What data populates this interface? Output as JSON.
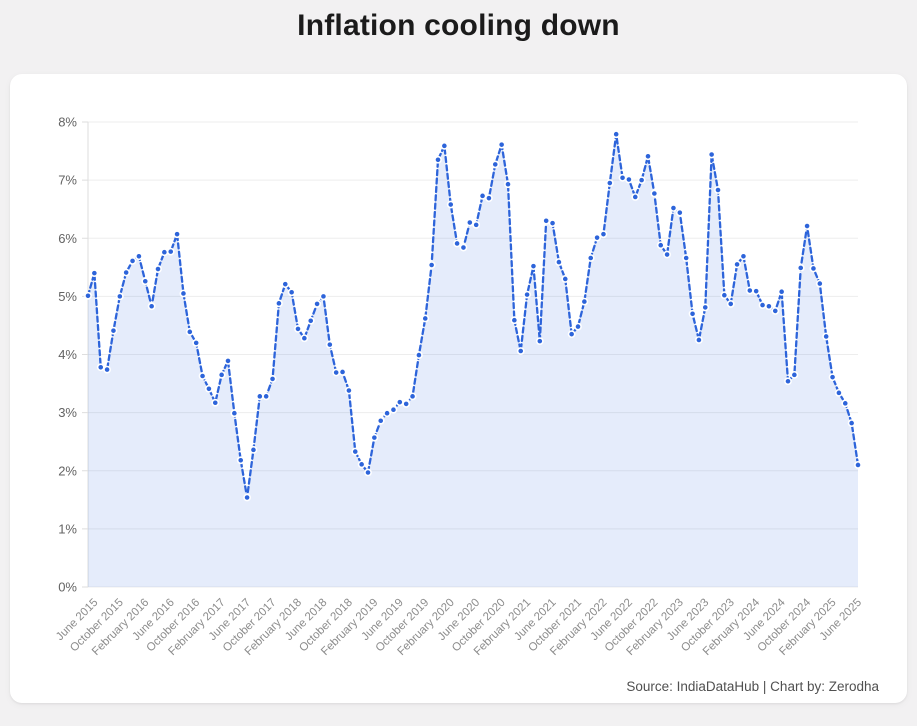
{
  "page": {
    "title": "Inflation cooling down",
    "source_note": "Source: IndiaDataHub | Chart by: Zerodha"
  },
  "chart_data": {
    "type": "line",
    "title": "Inflation cooling down",
    "line_style": "dashed",
    "marker": "dot",
    "legend": "none",
    "grid": "horizontal",
    "ylim": [
      0,
      8
    ],
    "y_tick_labels": [
      "0%",
      "1%",
      "2%",
      "3%",
      "4%",
      "5%",
      "6%",
      "7%",
      "8%"
    ],
    "x_first_tick_index": 1,
    "x_tick_every": 4,
    "x_tick_labels": [
      "June 2015",
      "October 2015",
      "February 2016",
      "June 2016",
      "October 2016",
      "February 2017",
      "June 2017",
      "October 2017",
      "February 2018",
      "June 2018",
      "October 2018",
      "February 2019",
      "June 2019",
      "October 2019",
      "February 2020",
      "June 2020",
      "October 2020",
      "February 2021",
      "June 2021",
      "October 2021",
      "February 2022",
      "June 2022",
      "October 2022",
      "February 2023",
      "June 2023",
      "October 2023",
      "February 2024",
      "June 2024",
      "October 2024",
      "February 2025",
      "June 2025"
    ],
    "x": [
      "May 2015",
      "June 2015",
      "July 2015",
      "August 2015",
      "September 2015",
      "October 2015",
      "November 2015",
      "December 2015",
      "January 2016",
      "February 2016",
      "March 2016",
      "April 2016",
      "May 2016",
      "June 2016",
      "July 2016",
      "August 2016",
      "September 2016",
      "October 2016",
      "November 2016",
      "December 2016",
      "January 2017",
      "February 2017",
      "March 2017",
      "April 2017",
      "May 2017",
      "June 2017",
      "July 2017",
      "August 2017",
      "September 2017",
      "October 2017",
      "November 2017",
      "December 2017",
      "January 2018",
      "February 2018",
      "March 2018",
      "April 2018",
      "May 2018",
      "June 2018",
      "July 2018",
      "August 2018",
      "September 2018",
      "October 2018",
      "November 2018",
      "December 2018",
      "January 2019",
      "February 2019",
      "March 2019",
      "April 2019",
      "May 2019",
      "June 2019",
      "July 2019",
      "August 2019",
      "September 2019",
      "October 2019",
      "November 2019",
      "December 2019",
      "January 2020",
      "February 2020",
      "March 2020",
      "April 2020",
      "May 2020",
      "June 2020",
      "July 2020",
      "August 2020",
      "September 2020",
      "October 2020",
      "November 2020",
      "December 2020",
      "January 2021",
      "February 2021",
      "March 2021",
      "April 2021",
      "May 2021",
      "June 2021",
      "July 2021",
      "August 2021",
      "September 2021",
      "October 2021",
      "November 2021",
      "December 2021",
      "January 2022",
      "February 2022",
      "March 2022",
      "April 2022",
      "May 2022",
      "June 2022",
      "July 2022",
      "August 2022",
      "September 2022",
      "October 2022",
      "November 2022",
      "December 2022",
      "January 2023",
      "February 2023",
      "March 2023",
      "April 2023",
      "May 2023",
      "June 2023",
      "July 2023",
      "August 2023",
      "September 2023",
      "October 2023",
      "November 2023",
      "December 2023",
      "January 2024",
      "February 2024",
      "March 2024",
      "April 2024",
      "May 2024",
      "June 2024",
      "July 2024",
      "August 2024",
      "September 2024",
      "October 2024",
      "November 2024",
      "December 2024",
      "January 2025",
      "February 2025",
      "March 2025",
      "April 2025",
      "May 2025",
      "June 2025"
    ],
    "values": [
      5.01,
      5.4,
      3.78,
      3.74,
      4.41,
      5.0,
      5.41,
      5.61,
      5.69,
      5.26,
      4.83,
      5.47,
      5.76,
      5.77,
      6.07,
      5.05,
      4.39,
      4.2,
      3.63,
      3.41,
      3.17,
      3.65,
      3.89,
      2.99,
      2.18,
      1.54,
      2.36,
      3.28,
      3.28,
      3.58,
      4.88,
      5.21,
      5.07,
      4.44,
      4.28,
      4.58,
      4.87,
      5.0,
      4.17,
      3.69,
      3.7,
      3.38,
      2.33,
      2.11,
      1.97,
      2.57,
      2.86,
      2.99,
      3.05,
      3.18,
      3.15,
      3.28,
      3.99,
      4.62,
      5.54,
      7.35,
      7.59,
      6.58,
      5.91,
      5.84,
      6.27,
      6.23,
      6.73,
      6.69,
      7.27,
      7.61,
      6.93,
      4.59,
      4.06,
      5.03,
      5.52,
      4.23,
      6.3,
      6.26,
      5.59,
      5.3,
      4.35,
      4.48,
      4.91,
      5.66,
      6.01,
      6.07,
      6.95,
      7.79,
      7.04,
      7.01,
      6.71,
      7.0,
      7.41,
      6.77,
      5.88,
      5.72,
      6.52,
      6.44,
      5.66,
      4.7,
      4.25,
      4.81,
      7.44,
      6.83,
      5.02,
      4.87,
      5.55,
      5.69,
      5.1,
      5.09,
      4.85,
      4.83,
      4.75,
      5.08,
      3.54,
      3.65,
      5.49,
      6.21,
      5.48,
      5.22,
      4.31,
      3.61,
      3.34,
      3.16,
      2.82,
      2.1
    ],
    "colors": {
      "line": "#2d64da",
      "area": "rgba(45,100,218,0.12)",
      "marker_fill": "#2d64da",
      "marker_ring": "#ffffff",
      "grid": "#ededed",
      "axis": "#dedede",
      "y_tick_text": "#636363",
      "x_tick_text": "#8c8c8c",
      "page_background": "#f2f1f2",
      "card_background": "#ffffff"
    }
  }
}
